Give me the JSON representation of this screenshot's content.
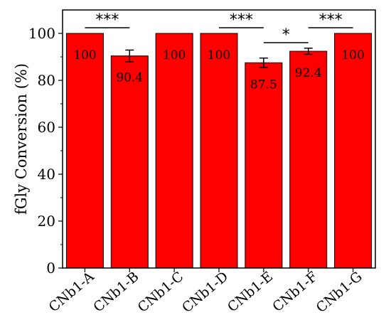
{
  "chart_data": {
    "type": "bar",
    "title": "",
    "xlabel": "",
    "ylabel": "fGly Conversion (%)",
    "ylim": [
      0,
      110
    ],
    "yticks": [
      0,
      20,
      40,
      60,
      80,
      100
    ],
    "grid": false,
    "bar_color": "#ff0000",
    "categories": [
      "CNb1-A",
      "CNb1-B",
      "CNb1-C",
      "CNb1-D",
      "CNb1-E",
      "CNb1-F",
      "CNb1-G"
    ],
    "values": [
      100,
      90.4,
      100,
      100,
      87.5,
      92.4,
      100
    ],
    "value_labels": [
      "100",
      "90.4",
      "100",
      "100",
      "87.5",
      "92.4",
      "100"
    ],
    "errors": [
      0,
      2.5,
      0,
      0,
      2.0,
      1.3,
      0
    ],
    "annotations": [
      {
        "from": "CNb1-A",
        "to": "CNb1-B",
        "label": "***"
      },
      {
        "from": "CNb1-D",
        "to": "CNb1-E",
        "label": "***"
      },
      {
        "from": "CNb1-E",
        "to": "CNb1-F",
        "label": "*"
      },
      {
        "from": "CNb1-F",
        "to": "CNb1-G",
        "label": "***"
      }
    ]
  }
}
